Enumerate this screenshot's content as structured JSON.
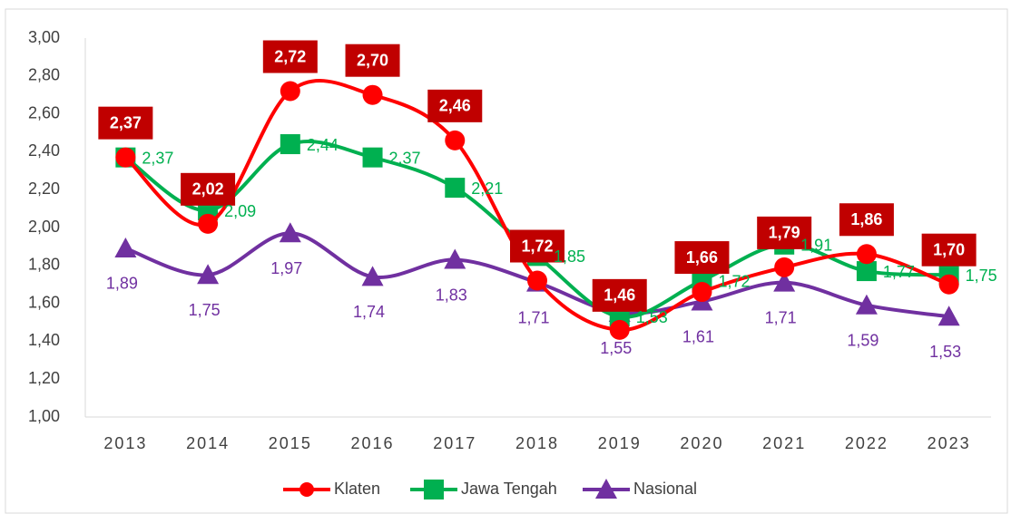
{
  "chart_data": {
    "type": "line",
    "categories": [
      "2013",
      "2014",
      "2015",
      "2016",
      "2017",
      "2018",
      "2019",
      "2020",
      "2021",
      "2022",
      "2023"
    ],
    "series": [
      {
        "name": "Klaten",
        "color": "#ff0000",
        "marker": "circle",
        "values": [
          2.37,
          2.02,
          2.72,
          2.7,
          2.46,
          1.72,
          1.46,
          1.66,
          1.79,
          1.86,
          1.7
        ],
        "value_labels": [
          "2,37",
          "2,02",
          "2,72",
          "2,70",
          "2,46",
          "1,72",
          "1,46",
          "1,66",
          "1,79",
          "1,86",
          "1,70"
        ]
      },
      {
        "name": "Jawa Tengah",
        "color": "#00b050",
        "marker": "square",
        "values": [
          2.37,
          2.09,
          2.44,
          2.37,
          2.21,
          1.85,
          1.53,
          1.72,
          1.91,
          1.77,
          1.75
        ],
        "value_labels": [
          "2,37",
          "2,09",
          "2,44",
          "2,37",
          "2,21",
          "1,85",
          "1,53",
          "1,72",
          "1,91",
          "1,77",
          "1,75"
        ]
      },
      {
        "name": "Nasional",
        "color": "#7030a0",
        "marker": "triangle",
        "values": [
          1.89,
          1.75,
          1.97,
          1.74,
          1.83,
          1.71,
          1.55,
          1.61,
          1.71,
          1.59,
          1.53
        ],
        "value_labels": [
          "1,89",
          "1,75",
          "1,97",
          "1,74",
          "1,83",
          "1,71",
          "1,55",
          "1,61",
          "1,71",
          "1,59",
          "1,53"
        ]
      }
    ],
    "ylim": [
      1,
      3
    ],
    "yticks": [
      {
        "value": 1,
        "label": "1,00"
      },
      {
        "value": 1.2,
        "label": "1,20"
      },
      {
        "value": 1.4,
        "label": "1,40"
      },
      {
        "value": 1.6,
        "label": "1,60"
      },
      {
        "value": 1.8,
        "label": "1,80"
      },
      {
        "value": 2,
        "label": "2,00"
      },
      {
        "value": 2.2,
        "label": "2,20"
      },
      {
        "value": 2.4,
        "label": "2,40"
      },
      {
        "value": 2.6,
        "label": "2,60"
      },
      {
        "value": 2.8,
        "label": "2,80"
      },
      {
        "value": 3,
        "label": "3,00"
      }
    ],
    "grid": false,
    "legend": "bottom"
  }
}
